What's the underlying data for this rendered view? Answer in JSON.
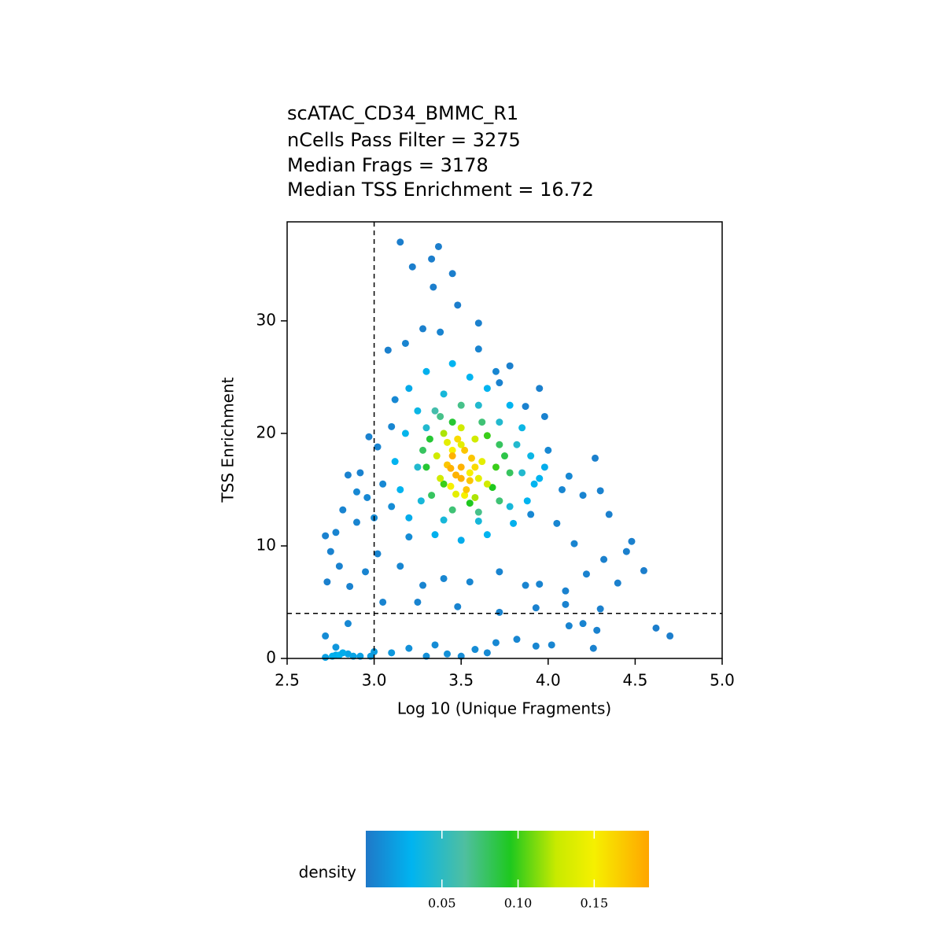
{
  "chart_data": {
    "type": "scatter",
    "title": "scATAC_CD34_BMMC_R1",
    "subtitle": [
      "nCells Pass Filter = 3275",
      "Median Frags = 3178",
      "Median TSS Enrichment = 16.72"
    ],
    "x_label": "Log 10 (Unique Fragments)",
    "y_label": "TSS Enrichment",
    "xlim": [
      2.5,
      5.0
    ],
    "ylim": [
      0,
      38.8
    ],
    "xticks": [
      2.5,
      {
        "value": 3,
        "label": "3.0"
      },
      3.5,
      {
        "value": 4,
        "label": "4.0"
      },
      4.5,
      {
        "value": 5,
        "label": "5.0"
      }
    ],
    "yticks": [
      0,
      10,
      20,
      30
    ],
    "thresholds": {
      "x": 3,
      "y": 4
    },
    "x": [
      3.15,
      3.37,
      3.33,
      3.22,
      3.45,
      3.34,
      3.48,
      3.28,
      3.6,
      3.08,
      3.78,
      3.72,
      3.95,
      3.87,
      3.98,
      2.97,
      2.85,
      2.92,
      3.02,
      3.1,
      3.05,
      2.96,
      2.82,
      2.9,
      2.78,
      2.72,
      2.75,
      2.8,
      2.73,
      2.86,
      2.95,
      3.02,
      3.15,
      3.28,
      3.4,
      3.55,
      3.72,
      3.87,
      3.95,
      4.1,
      4.22,
      4.3,
      4.4,
      4.32,
      4.45,
      4.55,
      4.48,
      4.3,
      4.35,
      4.27,
      4.12,
      4.2,
      4.15,
      4.05,
      2.72,
      2.78,
      2.85,
      2.92,
      3.0,
      3.1,
      3.2,
      3.35,
      3.42,
      3.58,
      3.7,
      3.82,
      3.93,
      4.02,
      4.12,
      4.2,
      4.26,
      4.28,
      4.62,
      4.7,
      2.72,
      2.78,
      2.85,
      3.05,
      3.25,
      3.48,
      3.72,
      3.93,
      4.1,
      2.88,
      2.98,
      3.3,
      3.5,
      3.65,
      3.1,
      3.2,
      3.0,
      2.9,
      3.18,
      3.12,
      3.38,
      3.6,
      3.7,
      4.0,
      4.08,
      3.9,
      3.2,
      3.3,
      3.45,
      3.55,
      3.65,
      3.78,
      3.85,
      3.9,
      3.95,
      3.88,
      3.8,
      3.65,
      3.5,
      3.35,
      3.2,
      3.15,
      3.12,
      3.18,
      3.25,
      3.4,
      3.6,
      3.72,
      3.82,
      3.85,
      3.78,
      3.6,
      3.4,
      3.27,
      3.25,
      3.3,
      2.8,
      2.76,
      2.82,
      3.92,
      3.98,
      3.35,
      3.5,
      3.62,
      3.72,
      3.78,
      3.72,
      3.6,
      3.45,
      3.33,
      3.3,
      3.32,
      3.45,
      3.65,
      3.7,
      3.4,
      3.55,
      3.68,
      3.75,
      3.38,
      3.28,
      3.4,
      3.5,
      3.58,
      3.62,
      3.65,
      3.58,
      3.47,
      3.38,
      3.36,
      3.45,
      3.55,
      3.42,
      3.6,
      3.52,
      3.44,
      3.5,
      3.45,
      3.5,
      3.55,
      3.47,
      3.52,
      3.42,
      3.48,
      3.56,
      3.5,
      3.44,
      3.53,
      3.58
    ],
    "y": [
      37,
      36.6,
      35.5,
      34.8,
      34.2,
      33,
      31.4,
      29.3,
      29.8,
      27.4,
      26,
      24.5,
      24,
      22.4,
      21.5,
      19.7,
      16.3,
      16.5,
      18.8,
      20.6,
      15.5,
      14.3,
      13.2,
      12.1,
      11.2,
      10.9,
      9.5,
      8.2,
      6.8,
      6.4,
      7.7,
      9.3,
      8.2,
      6.5,
      7.1,
      6.8,
      7.7,
      6.5,
      6.6,
      6,
      7.5,
      4.4,
      6.7,
      8.8,
      9.5,
      7.8,
      10.4,
      14.9,
      12.8,
      17.8,
      16.2,
      14.5,
      10.2,
      12,
      0.1,
      0.3,
      0.4,
      0.2,
      0.6,
      0.5,
      0.9,
      1.2,
      0.4,
      0.8,
      1.4,
      1.7,
      1.1,
      1.2,
      2.9,
      3.1,
      0.9,
      2.5,
      2.7,
      2,
      2,
      1,
      3.1,
      5,
      5,
      4.6,
      4.1,
      4.5,
      4.8,
      0.2,
      0.2,
      0.2,
      0.2,
      0.5,
      13.5,
      10.8,
      12.5,
      14.8,
      28,
      23,
      29,
      27.5,
      25.5,
      18.5,
      15,
      12.8,
      24,
      25.5,
      26.2,
      25,
      24,
      22.5,
      20.5,
      18,
      16,
      14,
      12,
      11,
      10.5,
      11,
      12.5,
      15,
      17.5,
      20,
      22,
      23.5,
      22.5,
      21,
      19,
      16.5,
      13.5,
      12.2,
      12.3,
      14,
      17,
      20.5,
      0.3,
      0.2,
      0.5,
      15.5,
      17,
      22,
      22.5,
      21,
      19,
      16.5,
      14,
      13,
      13.2,
      14.5,
      17,
      19.5,
      21,
      19.8,
      17,
      15.5,
      13.8,
      15.2,
      18,
      21.5,
      18.5,
      20,
      20.5,
      19.5,
      17.5,
      15.5,
      14.3,
      14.6,
      16,
      18,
      18.5,
      16.5,
      19.2,
      16,
      14.5,
      15.3,
      19,
      18,
      17,
      15.8,
      16.3,
      18.5,
      17.2,
      19.5,
      17.8,
      16,
      16.9,
      15,
      17
    ],
    "density": [
      0.003,
      0.003,
      0.003,
      0.003,
      0.003,
      0.003,
      0.003,
      0.004,
      0.004,
      0.004,
      0.004,
      0.005,
      0.004,
      0.005,
      0.005,
      0.005,
      0.005,
      0.005,
      0.006,
      0.007,
      0.008,
      0.008,
      0.006,
      0.006,
      0.006,
      0.005,
      0.005,
      0.005,
      0.004,
      0.005,
      0.006,
      0.006,
      0.007,
      0.006,
      0.007,
      0.007,
      0.006,
      0.006,
      0.006,
      0.005,
      0.005,
      0.004,
      0.004,
      0.004,
      0.004,
      0.003,
      0.004,
      0.005,
      0.004,
      0.004,
      0.008,
      0.006,
      0.006,
      0.007,
      0.02,
      0.025,
      0.022,
      0.02,
      0.018,
      0.016,
      0.012,
      0.01,
      0.012,
      0.01,
      0.008,
      0.007,
      0.007,
      0.007,
      0.006,
      0.006,
      0.005,
      0.005,
      0.003,
      0.003,
      0.01,
      0.015,
      0.008,
      0.006,
      0.006,
      0.006,
      0.006,
      0.005,
      0.005,
      0.022,
      0.018,
      0.012,
      0.01,
      0.009,
      0.01,
      0.01,
      0.009,
      0.008,
      0.006,
      0.008,
      0.006,
      0.006,
      0.007,
      0.008,
      0.007,
      0.008,
      0.025,
      0.028,
      0.03,
      0.03,
      0.03,
      0.03,
      0.035,
      0.035,
      0.03,
      0.03,
      0.028,
      0.03,
      0.026,
      0.028,
      0.026,
      0.03,
      0.03,
      0.032,
      0.035,
      0.04,
      0.045,
      0.045,
      0.045,
      0.045,
      0.04,
      0.04,
      0.04,
      0.04,
      0.045,
      0.045,
      0.03,
      0.028,
      0.026,
      0.03,
      0.026,
      0.06,
      0.07,
      0.075,
      0.08,
      0.08,
      0.075,
      0.07,
      0.075,
      0.08,
      0.09,
      0.09,
      0.09,
      0.1,
      0.1,
      0.1,
      0.095,
      0.095,
      0.085,
      0.07,
      0.08,
      0.12,
      0.13,
      0.13,
      0.14,
      0.13,
      0.12,
      0.14,
      0.13,
      0.13,
      0.15,
      0.15,
      0.14,
      0.14,
      0.15,
      0.15,
      0.14,
      0.18,
      0.18,
      0.17,
      0.18,
      0.17,
      0.17,
      0.16,
      0.17,
      0.18,
      0.18,
      0.17,
      0.16
    ],
    "point_color_by": "density",
    "colorbar": {
      "label": "density",
      "lim": [
        0,
        0.186
      ],
      "ticks": [
        {
          "value": 0.05,
          "label": "0.05"
        },
        {
          "value": 0.1,
          "label": "0.10"
        },
        {
          "value": 0.15,
          "label": "0.15"
        }
      ],
      "stops": [
        {
          "value": 0,
          "color": "#1f78c8"
        },
        {
          "value": 0.03,
          "color": "#00b4f0"
        },
        {
          "value": 0.065,
          "color": "#4fbfa0"
        },
        {
          "value": 0.095,
          "color": "#1ec81e"
        },
        {
          "value": 0.125,
          "color": "#c8ea00"
        },
        {
          "value": 0.15,
          "color": "#f6f000"
        },
        {
          "value": 0.186,
          "color": "#ffa500"
        }
      ]
    }
  }
}
